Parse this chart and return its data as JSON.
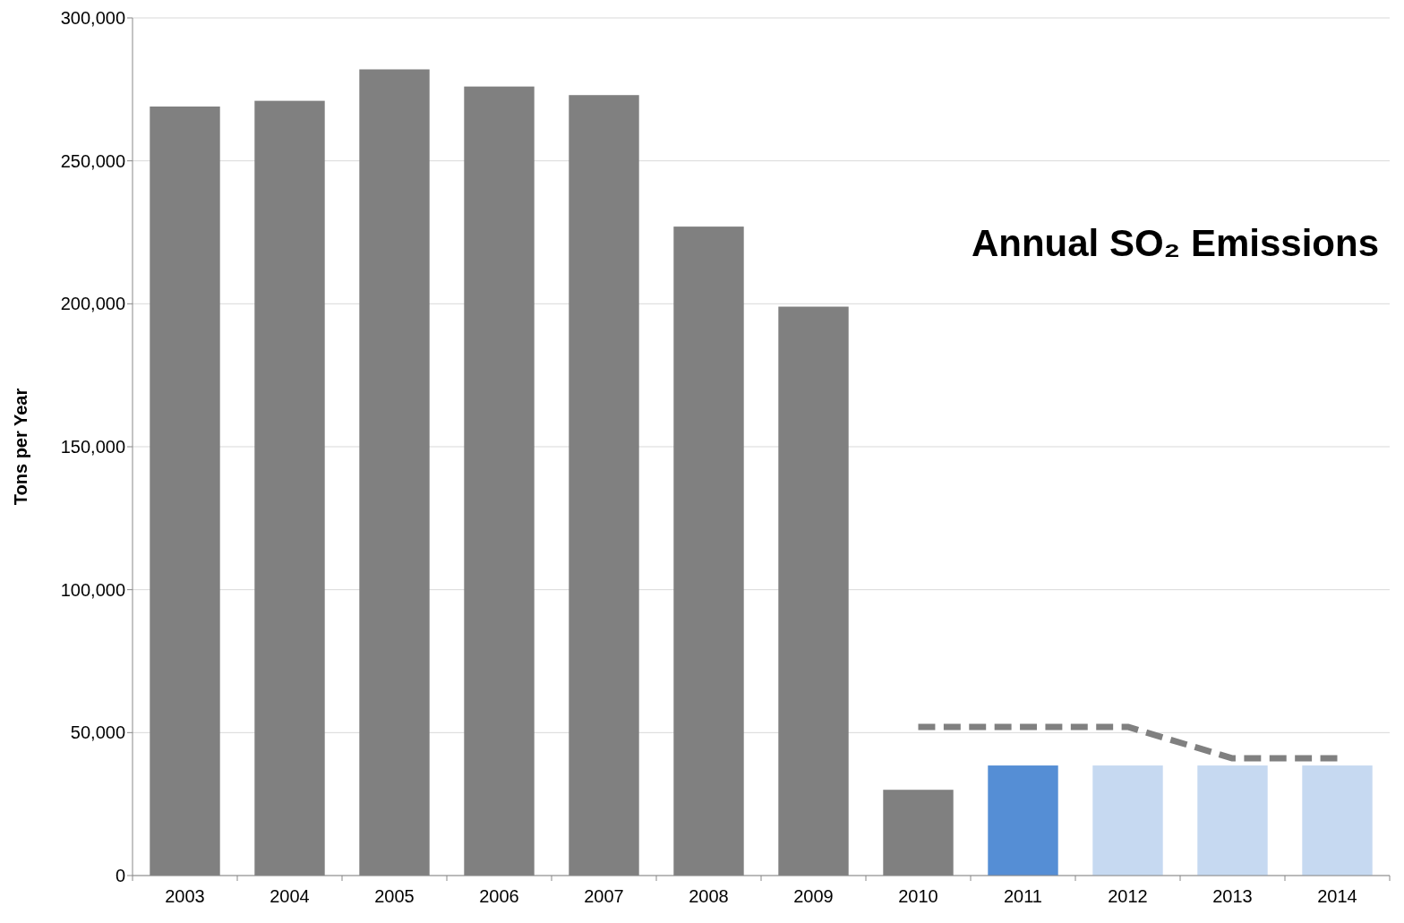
{
  "chart_data": {
    "type": "bar",
    "title": "Annual SO₂ Emissions",
    "ylabel": "Tons per Year",
    "categories": [
      "2003",
      "2004",
      "2005",
      "2006",
      "2007",
      "2008",
      "2009",
      "2010",
      "2011",
      "2012",
      "2013",
      "2014"
    ],
    "series": [
      {
        "values": [
          269000,
          271000,
          282000,
          276000,
          273000,
          227000,
          199000,
          30000,
          38500,
          38500,
          38500,
          38500
        ],
        "colors": [
          "#808080",
          "#808080",
          "#808080",
          "#808080",
          "#808080",
          "#808080",
          "#808080",
          "#808080",
          "#558ed5",
          "#c6d9f1",
          "#c6d9f1",
          "#c6d9f1"
        ]
      },
      {
        "type": "line",
        "color": "#808080",
        "line_style": "dashed",
        "values": [
          null,
          null,
          null,
          null,
          null,
          null,
          null,
          52000,
          52000,
          52000,
          41000,
          41000
        ]
      }
    ],
    "ylim": [
      0,
      300000
    ],
    "yticks": [
      {
        "value": 0,
        "label": "0"
      },
      {
        "value": 50000,
        "label": "50,000"
      },
      {
        "value": 100000,
        "label": "100,000"
      },
      {
        "value": 150000,
        "label": "150,000"
      },
      {
        "value": 200000,
        "label": "200,000"
      },
      {
        "value": 250000,
        "label": "250,000"
      },
      {
        "value": 300000,
        "label": "300,000"
      }
    ],
    "grid": "y"
  }
}
